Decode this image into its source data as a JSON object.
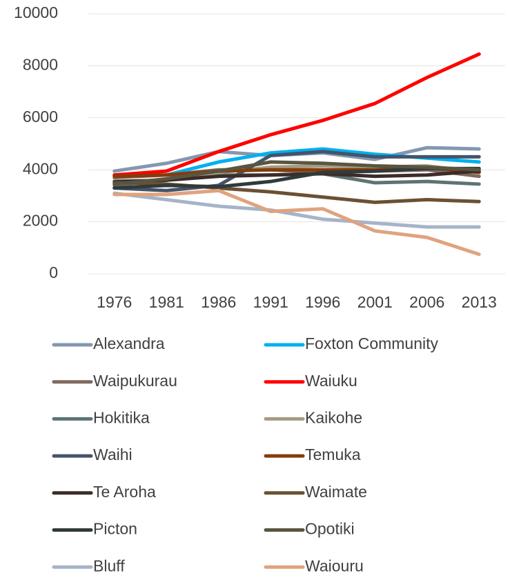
{
  "chart_data": {
    "type": "line",
    "categories": [
      "1976",
      "1981",
      "1986",
      "1991",
      "1996",
      "2001",
      "2006",
      "2013"
    ],
    "ylim": [
      0,
      10000
    ],
    "yticks": [
      0,
      2000,
      4000,
      6000,
      8000,
      10000
    ],
    "grid": true,
    "legend": "bottom",
    "series": [
      {
        "name": "Alexandra",
        "color": "#8497b0",
        "values": [
          3950,
          4250,
          4700,
          4550,
          4650,
          4400,
          4850,
          4800
        ]
      },
      {
        "name": "Foxton Community",
        "color": "#00b0f0",
        "values": [
          3800,
          3800,
          4300,
          4650,
          4800,
          4600,
          4450,
          4300
        ]
      },
      {
        "name": "Waipukurau",
        "color": "#7f6a5e",
        "values": [
          3700,
          3800,
          4000,
          4000,
          3900,
          3950,
          4000,
          3750
        ]
      },
      {
        "name": "Waiuku",
        "color": "#ff0000",
        "values": [
          3800,
          3950,
          4700,
          5350,
          5900,
          6550,
          7550,
          8450
        ]
      },
      {
        "name": "Hokitika",
        "color": "#5f7373",
        "values": [
          3400,
          3600,
          3800,
          3800,
          3850,
          3500,
          3550,
          3450
        ]
      },
      {
        "name": "Kaikohe",
        "color": "#a59c80",
        "values": [
          3500,
          3600,
          3900,
          4100,
          4150,
          4100,
          4150,
          3900
        ]
      },
      {
        "name": "Waihi",
        "color": "#44546a",
        "values": [
          3300,
          3200,
          3400,
          4550,
          4700,
          4500,
          4500,
          4500
        ]
      },
      {
        "name": "Temuka",
        "color": "#843c0c",
        "values": [
          3750,
          3800,
          3950,
          4000,
          4000,
          4000,
          4100,
          3900
        ]
      },
      {
        "name": "Te Aroha",
        "color": "#3b2c2a",
        "values": [
          3550,
          3600,
          3750,
          3800,
          3850,
          3750,
          3800,
          3950
        ]
      },
      {
        "name": "Waimate",
        "color": "#6b5033",
        "values": [
          3500,
          3450,
          3300,
          3150,
          2950,
          2750,
          2850,
          2780
        ]
      },
      {
        "name": "Picton",
        "color": "#313a3a",
        "values": [
          3300,
          3400,
          3350,
          3550,
          3900,
          3950,
          4050,
          4050
        ]
      },
      {
        "name": "Opotiki",
        "color": "#595540",
        "values": [
          3450,
          3650,
          3950,
          4300,
          4250,
          4150,
          4100,
          4000
        ]
      },
      {
        "name": "Bluff",
        "color": "#a5b4c8",
        "values": [
          3100,
          2850,
          2600,
          2450,
          2100,
          1950,
          1800,
          1800
        ]
      },
      {
        "name": "Waiouru",
        "color": "#dfa37e",
        "values": [
          3050,
          3050,
          3200,
          2400,
          2500,
          1650,
          1400,
          750
        ]
      }
    ]
  }
}
